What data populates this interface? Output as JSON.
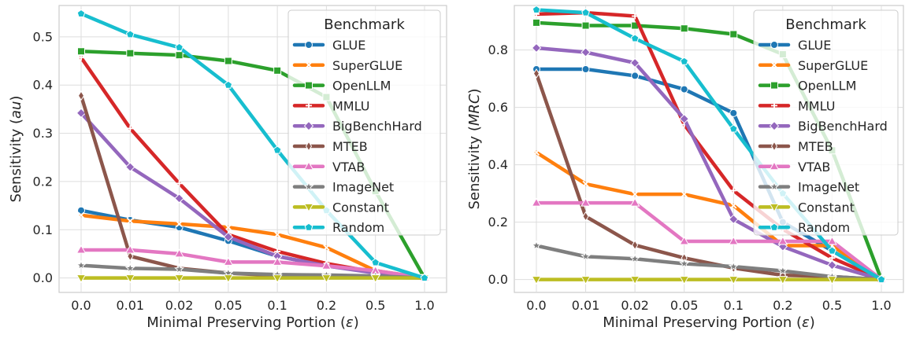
{
  "chart_data": [
    {
      "type": "line",
      "x": [
        "0.0",
        "0.01",
        "0.02",
        "0.05",
        "0.1",
        "0.2",
        "0.5",
        "1.0"
      ],
      "xlabel_main": "Minimal Preserving Portion (",
      "xlabel_symbol": "ε",
      "xlabel_close": ")",
      "ylabel_main": "Sensitivity (",
      "ylabel_symbol": "au",
      "ylabel_close": ")",
      "ylim": [
        -0.03,
        0.565
      ],
      "yticks": [
        0.0,
        0.1,
        0.2,
        0.3,
        0.4,
        0.5
      ],
      "ytick_labels": [
        "0.0",
        "0.1",
        "0.2",
        "0.3",
        "0.4",
        "0.5"
      ],
      "grid": true,
      "legend_title": "Benchmark",
      "legend_position": "top-right",
      "series": [
        {
          "name": "GLUE",
          "color": "#1f77b4",
          "marker": "circle",
          "values": [
            0.14,
            0.12,
            0.105,
            0.077,
            0.045,
            0.025,
            0.012,
            0.0
          ]
        },
        {
          "name": "SuperGLUE",
          "color": "#ff7f0e",
          "marker": "x",
          "values": [
            0.13,
            0.118,
            0.112,
            0.105,
            0.09,
            0.063,
            0.015,
            0.0
          ]
        },
        {
          "name": "OpenLLM",
          "color": "#2ca02c",
          "marker": "square",
          "values": [
            0.47,
            0.466,
            0.462,
            0.45,
            0.43,
            0.375,
            0.18,
            0.0
          ]
        },
        {
          "name": "MMLU",
          "color": "#d62728",
          "marker": "plus",
          "values": [
            0.457,
            0.31,
            0.196,
            0.09,
            0.055,
            0.03,
            0.012,
            0.0
          ]
        },
        {
          "name": "BigBenchHard",
          "color": "#9467bd",
          "marker": "diamond",
          "values": [
            0.342,
            0.23,
            0.165,
            0.085,
            0.045,
            0.025,
            0.01,
            0.0
          ]
        },
        {
          "name": "MTEB",
          "color": "#8c564b",
          "marker": "thin_diamond",
          "values": [
            0.378,
            0.045,
            0.02,
            0.01,
            0.005,
            0.003,
            0.001,
            0.0
          ]
        },
        {
          "name": "VTAB",
          "color": "#e377c2",
          "marker": "triangle_up",
          "values": [
            0.058,
            0.058,
            0.05,
            0.033,
            0.033,
            0.025,
            0.015,
            0.0
          ]
        },
        {
          "name": "ImageNet",
          "color": "#7f7f7f",
          "marker": "star",
          "values": [
            0.026,
            0.02,
            0.018,
            0.01,
            0.007,
            0.006,
            0.004,
            0.0
          ]
        },
        {
          "name": "Constant",
          "color": "#bcbd22",
          "marker": "triangle_down",
          "values": [
            0.0,
            0.0,
            0.0,
            0.0,
            0.0,
            0.0,
            0.0,
            0.0
          ]
        },
        {
          "name": "Random",
          "color": "#17becf",
          "marker": "pentagon",
          "values": [
            0.548,
            0.505,
            0.478,
            0.4,
            0.265,
            0.14,
            0.032,
            0.0
          ]
        }
      ]
    },
    {
      "type": "line",
      "x": [
        "0.0",
        "0.01",
        "0.02",
        "0.05",
        "0.1",
        "0.2",
        "0.5",
        "1.0"
      ],
      "xlabel_main": "Minimal Preserving Portion (",
      "xlabel_symbol": "ε",
      "xlabel_close": ")",
      "ylabel_main": "Sensitivity (",
      "ylabel_symbol": "MRC",
      "ylabel_close": ")",
      "ylim": [
        -0.045,
        0.955
      ],
      "yticks": [
        0.0,
        0.2,
        0.4,
        0.6,
        0.8
      ],
      "ytick_labels": [
        "0.0",
        "0.2",
        "0.4",
        "0.6",
        "0.8"
      ],
      "grid": true,
      "legend_title": "Benchmark",
      "legend_position": "top-right",
      "series": [
        {
          "name": "GLUE",
          "color": "#1f77b4",
          "marker": "circle",
          "values": [
            0.733,
            0.733,
            0.71,
            0.663,
            0.58,
            0.2,
            0.1,
            0.0
          ]
        },
        {
          "name": "SuperGLUE",
          "color": "#ff7f0e",
          "marker": "x",
          "values": [
            0.443,
            0.333,
            0.297,
            0.297,
            0.258,
            0.118,
            0.118,
            0.0
          ]
        },
        {
          "name": "OpenLLM",
          "color": "#2ca02c",
          "marker": "square",
          "values": [
            0.895,
            0.885,
            0.885,
            0.875,
            0.855,
            0.785,
            0.45,
            0.0
          ]
        },
        {
          "name": "MMLU",
          "color": "#d62728",
          "marker": "plus",
          "values": [
            0.925,
            0.93,
            0.918,
            0.54,
            0.31,
            0.175,
            0.075,
            0.0
          ]
        },
        {
          "name": "BigBenchHard",
          "color": "#9467bd",
          "marker": "diamond",
          "values": [
            0.807,
            0.792,
            0.755,
            0.56,
            0.21,
            0.115,
            0.05,
            0.0
          ]
        },
        {
          "name": "MTEB",
          "color": "#8c564b",
          "marker": "thin_diamond",
          "values": [
            0.718,
            0.22,
            0.12,
            0.075,
            0.04,
            0.015,
            0.01,
            0.0
          ]
        },
        {
          "name": "VTAB",
          "color": "#e377c2",
          "marker": "triangle_up",
          "values": [
            0.267,
            0.267,
            0.267,
            0.133,
            0.133,
            0.133,
            0.133,
            0.0
          ]
        },
        {
          "name": "ImageNet",
          "color": "#7f7f7f",
          "marker": "star",
          "values": [
            0.118,
            0.08,
            0.072,
            0.055,
            0.045,
            0.03,
            0.01,
            0.0
          ]
        },
        {
          "name": "Constant",
          "color": "#bcbd22",
          "marker": "triangle_down",
          "values": [
            0.0,
            0.0,
            0.0,
            0.0,
            0.0,
            0.0,
            0.0,
            0.0
          ]
        },
        {
          "name": "Random",
          "color": "#17becf",
          "marker": "pentagon",
          "values": [
            0.94,
            0.93,
            0.84,
            0.76,
            0.525,
            0.3,
            0.1,
            0.0
          ]
        }
      ]
    }
  ]
}
